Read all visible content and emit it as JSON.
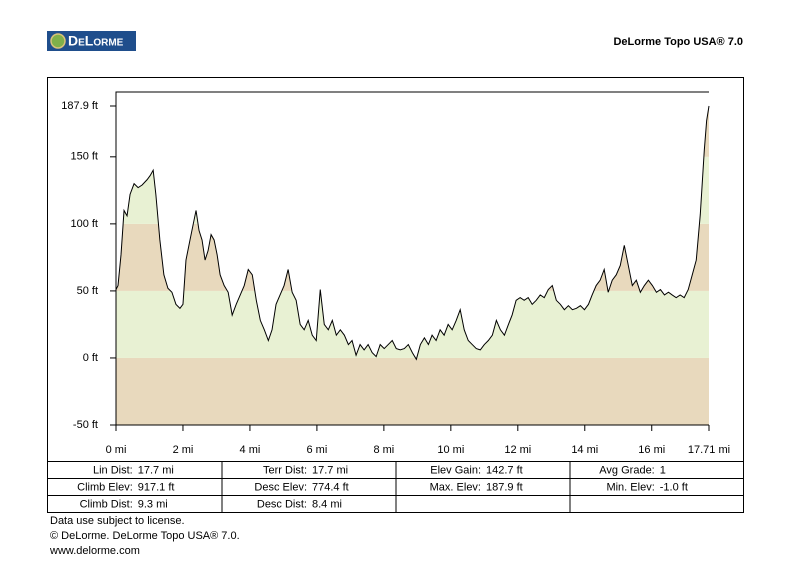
{
  "header": {
    "logo": "DeLorme",
    "product": "DeLorme Topo USA® 7.0"
  },
  "chart_data": {
    "type": "area",
    "x": [
      0,
      0.06,
      0.15,
      0.24,
      0.33,
      0.42,
      0.54,
      0.66,
      0.78,
      0.93,
      1.02,
      1.11,
      1.19,
      1.31,
      1.43,
      1.55,
      1.67,
      1.79,
      1.91,
      2.0,
      2.09,
      2.21,
      2.3,
      2.39,
      2.48,
      2.57,
      2.66,
      2.75,
      2.84,
      2.93,
      3.02,
      3.11,
      3.23,
      3.35,
      3.47,
      3.59,
      3.71,
      3.83,
      3.95,
      4.07,
      4.19,
      4.31,
      4.43,
      4.55,
      4.66,
      4.78,
      4.9,
      5.02,
      5.14,
      5.26,
      5.38,
      5.5,
      5.62,
      5.74,
      5.86,
      5.98,
      6.1,
      6.22,
      6.34,
      6.46,
      6.58,
      6.7,
      6.82,
      6.94,
      7.05,
      7.17,
      7.29,
      7.41,
      7.53,
      7.65,
      7.77,
      7.89,
      8.01,
      8.13,
      8.25,
      8.37,
      8.49,
      8.61,
      8.73,
      8.85,
      8.97,
      9.09,
      9.21,
      9.33,
      9.44,
      9.56,
      9.68,
      9.8,
      9.92,
      10.04,
      10.16,
      10.28,
      10.4,
      10.52,
      10.64,
      10.76,
      10.88,
      11.0,
      11.12,
      11.24,
      11.36,
      11.48,
      11.6,
      11.72,
      11.83,
      11.95,
      12.07,
      12.19,
      12.31,
      12.43,
      12.55,
      12.67,
      12.79,
      12.91,
      13.03,
      13.15,
      13.27,
      13.39,
      13.51,
      13.63,
      13.75,
      13.87,
      13.99,
      14.11,
      14.22,
      14.34,
      14.46,
      14.58,
      14.7,
      14.82,
      14.94,
      15.06,
      15.18,
      15.3,
      15.42,
      15.54,
      15.66,
      15.78,
      15.9,
      16.02,
      16.14,
      16.26,
      16.38,
      16.5,
      16.61,
      16.73,
      16.85,
      16.97,
      17.09,
      17.21,
      17.33,
      17.45,
      17.57,
      17.64,
      17.71
    ],
    "values": [
      51,
      54,
      77,
      110,
      106,
      122,
      130,
      127,
      129,
      133,
      136,
      140,
      122,
      88,
      62,
      52,
      49,
      40,
      37,
      40,
      73,
      88,
      99,
      110,
      95,
      88,
      73,
      80,
      92,
      88,
      77,
      62,
      54,
      49,
      32,
      40,
      47,
      54,
      66,
      62,
      43,
      28,
      21,
      13,
      21,
      40,
      47,
      54,
      66,
      49,
      43,
      25,
      21,
      28,
      17,
      13,
      51,
      25,
      21,
      28,
      17,
      21,
      17,
      10,
      13,
      2,
      10,
      6,
      10,
      4,
      1,
      10,
      7,
      10,
      13,
      7,
      6,
      7,
      10,
      4,
      -1,
      10,
      15,
      10,
      17,
      13,
      21,
      17,
      25,
      21,
      28,
      36,
      21,
      13,
      10,
      7,
      6,
      10,
      13,
      17,
      28,
      21,
      17,
      25,
      32,
      43,
      45,
      43,
      45,
      40,
      43,
      47,
      45,
      51,
      54,
      43,
      40,
      36,
      39,
      36,
      37,
      39,
      36,
      40,
      47,
      54,
      58,
      66,
      49,
      58,
      62,
      69,
      84,
      69,
      54,
      58,
      49,
      54,
      58,
      54,
      49,
      51,
      47,
      49,
      47,
      45,
      47,
      45,
      51,
      62,
      73,
      107,
      155,
      177,
      187.9
    ],
    "color": "#000000",
    "band_colors": [
      "#e8d9bd",
      "#e8f1d3"
    ],
    "xlim": [
      0,
      17.71
    ],
    "xticks": [
      {
        "value": 0,
        "label": "0 mi"
      },
      {
        "value": 2,
        "label": "2 mi"
      },
      {
        "value": 4,
        "label": "4 mi"
      },
      {
        "value": 6,
        "label": "6 mi"
      },
      {
        "value": 8,
        "label": "8 mi"
      },
      {
        "value": 10,
        "label": "10 mi"
      },
      {
        "value": 12,
        "label": "12 mi"
      },
      {
        "value": 14,
        "label": "14 mi"
      },
      {
        "value": 16,
        "label": "16 mi"
      },
      {
        "value": 17.71,
        "label": "17.71 mi"
      }
    ],
    "ylim": [
      -50,
      187.9
    ],
    "yticks": [
      {
        "value": -50,
        "label": "-50 ft"
      },
      {
        "value": 0,
        "label": "0 ft"
      },
      {
        "value": 50,
        "label": "50 ft"
      },
      {
        "value": 100,
        "label": "100 ft"
      },
      {
        "value": 150,
        "label": "150 ft"
      },
      {
        "value": 187.9,
        "label": "187.9 ft"
      }
    ]
  },
  "stats": [
    [
      {
        "label": "Lin Dist:",
        "value": "17.7 mi"
      },
      {
        "label": "Terr Dist:",
        "value": "17.7 mi"
      },
      {
        "label": "Elev Gain:",
        "value": "142.7 ft"
      },
      {
        "label": "Avg Grade:",
        "value": "1"
      }
    ],
    [
      {
        "label": "Climb Elev:",
        "value": "917.1 ft"
      },
      {
        "label": "Desc Elev:",
        "value": "774.4 ft"
      },
      {
        "label": "Max. Elev:",
        "value": "187.9 ft"
      },
      {
        "label": "Min. Elev:",
        "value": "-1.0 ft"
      }
    ],
    [
      {
        "label": "Climb Dist:",
        "value": "9.3 mi"
      },
      {
        "label": "Desc Dist:",
        "value": "8.4 mi"
      }
    ]
  ],
  "footer": [
    "Data use subject to license.",
    "© DeLorme. DeLorme Topo USA® 7.0.",
    "www.delorme.com"
  ]
}
